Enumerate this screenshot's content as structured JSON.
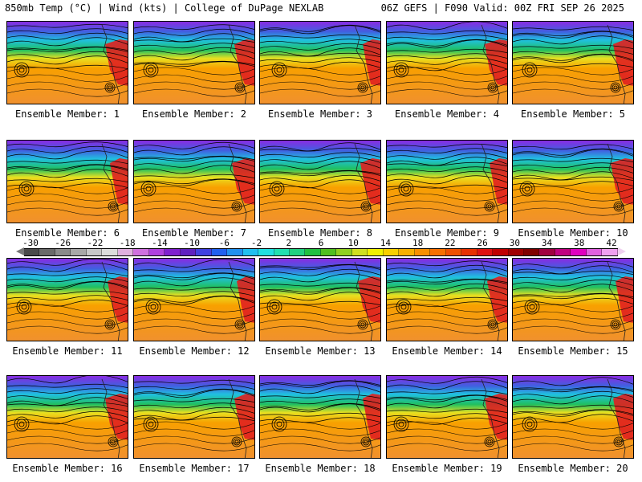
{
  "header": {
    "left": "850mb Temp (°C) | Wind (kts) | College of DuPage NEXLAB",
    "right": "06Z GEFS | F090 Valid: 00Z FRI SEP 26 2025"
  },
  "members": [
    "Ensemble Member: 1",
    "Ensemble Member: 2",
    "Ensemble Member: 3",
    "Ensemble Member: 4",
    "Ensemble Member: 5",
    "Ensemble Member: 6",
    "Ensemble Member: 7",
    "Ensemble Member: 8",
    "Ensemble Member: 9",
    "Ensemble Member: 10",
    "Ensemble Member: 11",
    "Ensemble Member: 12",
    "Ensemble Member: 13",
    "Ensemble Member: 14",
    "Ensemble Member: 15",
    "Ensemble Member: 16",
    "Ensemble Member: 17",
    "Ensemble Member: 18",
    "Ensemble Member: 19",
    "Ensemble Member: 20"
  ],
  "colorbar": {
    "ticks": [
      "-30",
      "-26",
      "-22",
      "-18",
      "-14",
      "-10",
      "-6",
      "-2",
      "2",
      "6",
      "10",
      "14",
      "18",
      "22",
      "26",
      "30",
      "34",
      "38",
      "42"
    ],
    "colors": [
      "#4a4a4a",
      "#6a6a6a",
      "#8a8a8a",
      "#a8a8a8",
      "#c8c8c8",
      "#dcdcdc",
      "#e0b0e0",
      "#d070e0",
      "#b040e0",
      "#8020d0",
      "#6020c0",
      "#4040e0",
      "#2060f0",
      "#2090f0",
      "#20c0f0",
      "#20e0e0",
      "#20e0b0",
      "#20d080",
      "#20c040",
      "#50c020",
      "#90d020",
      "#d0e020",
      "#f0f000",
      "#f8d000",
      "#f8b000",
      "#f89000",
      "#f87000",
      "#f05000",
      "#e83000",
      "#e01010",
      "#c00000",
      "#a00000",
      "#800000",
      "#a00040",
      "#c00080",
      "#e000c0",
      "#e060e0",
      "#f0a0f0"
    ]
  },
  "map_colors": {
    "cold": "#8a2be2",
    "cool": "#20c0e0",
    "mild": "#20c060",
    "warm": "#e8e020",
    "hot": "#f8a000",
    "land_hot": "#e02020"
  }
}
